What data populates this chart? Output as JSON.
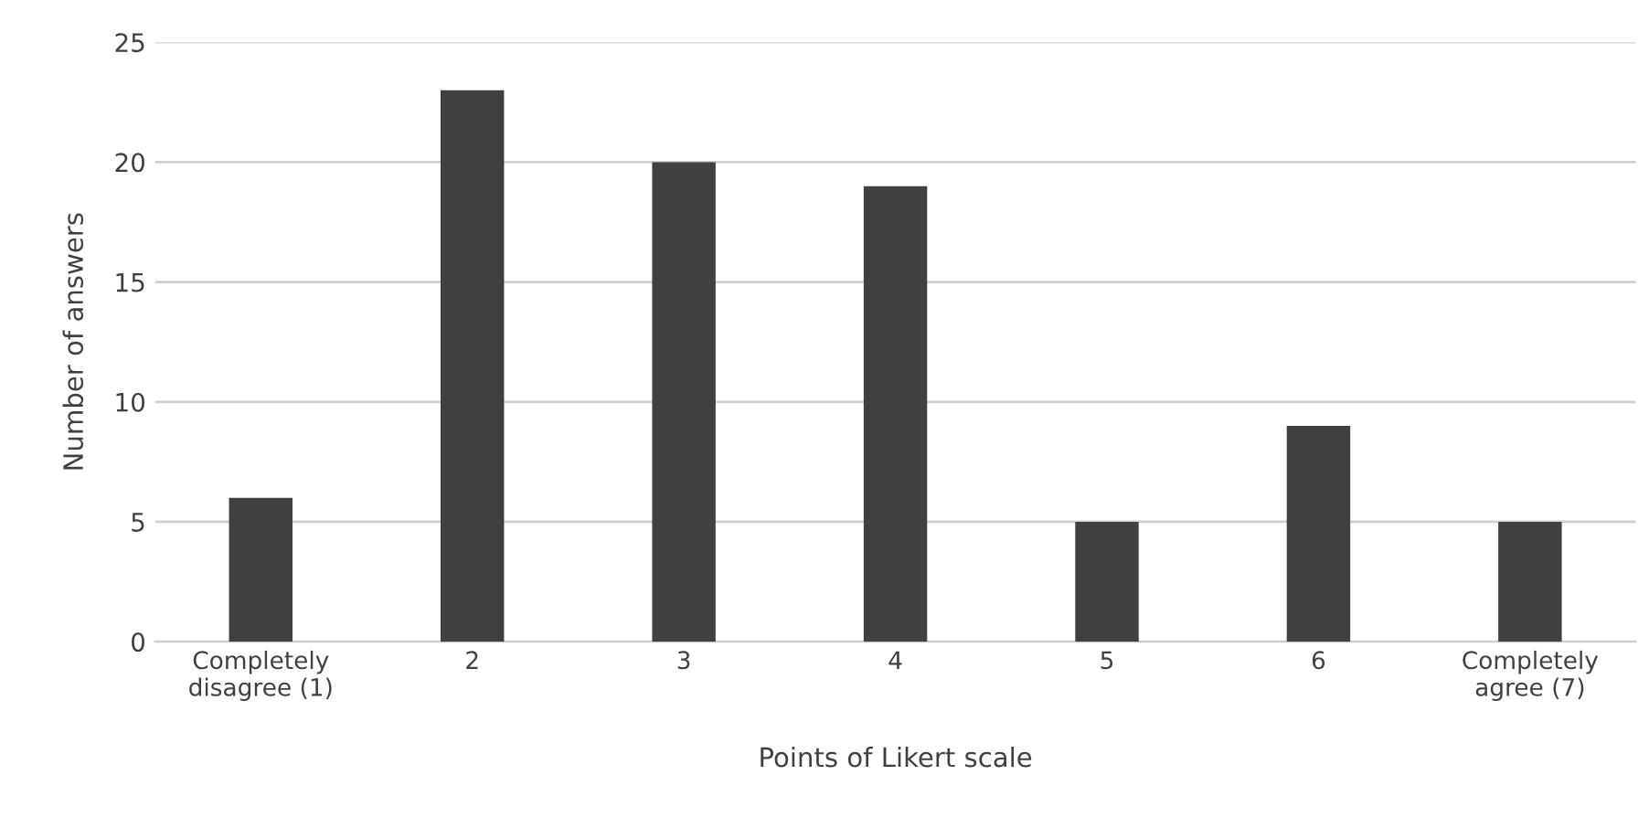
{
  "chart_data": {
    "type": "bar",
    "xlabel": "Points of Likert scale",
    "ylabel": "Number of answers",
    "categories": [
      "Completely\ndisagree (1)",
      "2",
      "3",
      "4",
      "5",
      "6",
      "Completely\nagree (7)"
    ],
    "values": [
      6,
      23,
      20,
      19,
      5,
      9,
      5
    ],
    "color": "#404040",
    "ylim": [
      0,
      25
    ],
    "yticks": [
      0,
      5,
      10,
      15,
      20,
      25
    ],
    "grid": "y",
    "legend": false
  }
}
